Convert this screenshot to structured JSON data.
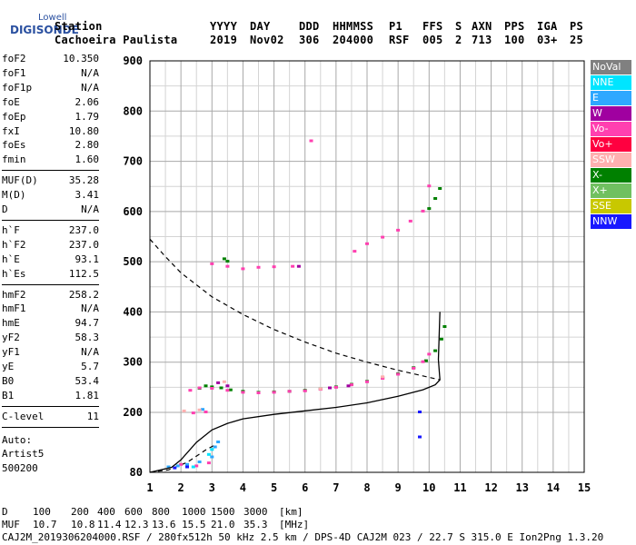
{
  "logo": {
    "line1": "Lowell",
    "line2": "DIGISONDE"
  },
  "header": {
    "row1": [
      "Station",
      "YYYY",
      "DAY",
      "DDD",
      "HHMMSS",
      "P1",
      "FFS",
      "S",
      "AXN",
      "PPS",
      "IGA",
      "PS"
    ],
    "row2": [
      "Cachoeira Paulista",
      "2019",
      "Nov02",
      "306",
      "204000",
      "RSF",
      "005",
      "2",
      "713",
      "100",
      "03+",
      "25"
    ]
  },
  "params": {
    "group1": [
      {
        "k": "foF2",
        "v": "10.350"
      },
      {
        "k": "foF1",
        "v": "N/A"
      },
      {
        "k": "foF1p",
        "v": "N/A"
      },
      {
        "k": "foE",
        "v": "2.06"
      },
      {
        "k": "foEp",
        "v": "1.79"
      },
      {
        "k": "fxI",
        "v": "10.80"
      },
      {
        "k": "foEs",
        "v": "2.80"
      },
      {
        "k": "fmin",
        "v": "1.60"
      }
    ],
    "group2": [
      {
        "k": "MUF(D)",
        "v": "35.28"
      },
      {
        "k": "M(D)",
        "v": "3.41"
      },
      {
        "k": "D",
        "v": "N/A"
      }
    ],
    "group3": [
      {
        "k": "h`F",
        "v": "237.0"
      },
      {
        "k": "h`F2",
        "v": "237.0"
      },
      {
        "k": "h`E",
        "v": "93.1"
      },
      {
        "k": "h`Es",
        "v": "112.5"
      }
    ],
    "group4": [
      {
        "k": "hmF2",
        "v": "258.2"
      },
      {
        "k": "hmF1",
        "v": "N/A"
      },
      {
        "k": "hmE",
        "v": "94.7"
      },
      {
        "k": "yF2",
        "v": "58.3"
      },
      {
        "k": "yF1",
        "v": "N/A"
      },
      {
        "k": "yE",
        "v": "5.7"
      },
      {
        "k": "B0",
        "v": "53.4"
      },
      {
        "k": "B1",
        "v": "1.81"
      }
    ],
    "group5": [
      {
        "k": "C-level",
        "v": "11"
      }
    ],
    "auto": [
      "Auto:",
      "Artist5",
      "500200"
    ]
  },
  "legend": [
    {
      "label": "NoVal",
      "color": "#808080"
    },
    {
      "label": "NNE",
      "color": "#00e5ff"
    },
    {
      "label": "E",
      "color": "#2ea8ff"
    },
    {
      "label": "W",
      "color": "#a000a0"
    },
    {
      "label": "Vo-",
      "color": "#ff40b0"
    },
    {
      "label": "Vo+",
      "color": "#ff0040"
    },
    {
      "label": "SSW",
      "color": "#ffb0b0"
    },
    {
      "label": "X-",
      "color": "#008000"
    },
    {
      "label": "X+",
      "color": "#70c060"
    },
    {
      "label": "SSE",
      "color": "#c8c800"
    },
    {
      "label": "NNW",
      "color": "#1818ff"
    }
  ],
  "chart_data": {
    "type": "scatter",
    "xlim": [
      1,
      15
    ],
    "ylim": [
      80,
      900
    ],
    "xticks": [
      "1",
      "2",
      "3",
      "4",
      "5",
      "6",
      "7",
      "8",
      "9",
      "10",
      "11",
      "12",
      "13",
      "14",
      "15"
    ],
    "yticks": [
      "80",
      "200",
      "300",
      "400",
      "500",
      "600",
      "700",
      "800",
      "900"
    ],
    "grid": true,
    "series": [
      {
        "name": "X-",
        "color": "#008000",
        "points": [
          [
            2.6,
            247
          ],
          [
            2.8,
            252
          ],
          [
            3.0,
            250
          ],
          [
            3.3,
            248
          ],
          [
            3.6,
            244
          ],
          [
            4.0,
            241
          ],
          [
            4.5,
            239
          ],
          [
            5.0,
            240
          ],
          [
            5.5,
            241
          ],
          [
            6.0,
            243
          ],
          [
            6.5,
            246
          ],
          [
            7.0,
            250
          ],
          [
            7.5,
            255
          ],
          [
            8.0,
            261
          ],
          [
            8.5,
            268
          ],
          [
            9.0,
            276
          ],
          [
            9.5,
            288
          ],
          [
            9.9,
            302
          ],
          [
            10.2,
            322
          ],
          [
            10.4,
            345
          ],
          [
            10.5,
            370
          ],
          [
            3.4,
            505
          ],
          [
            3.5,
            500
          ],
          [
            10.0,
            605
          ],
          [
            10.2,
            625
          ],
          [
            10.35,
            645
          ]
        ]
      },
      {
        "name": "Vo-",
        "color": "#ff40b0",
        "points": [
          [
            2.3,
            243
          ],
          [
            2.6,
            248
          ],
          [
            3.0,
            247
          ],
          [
            3.5,
            243
          ],
          [
            4.0,
            239
          ],
          [
            4.5,
            238
          ],
          [
            5.0,
            239
          ],
          [
            5.5,
            241
          ],
          [
            6.0,
            242
          ],
          [
            6.5,
            245
          ],
          [
            7.0,
            249
          ],
          [
            7.5,
            254
          ],
          [
            8.0,
            260
          ],
          [
            8.5,
            267
          ],
          [
            9.0,
            275
          ],
          [
            9.5,
            287
          ],
          [
            9.8,
            300
          ],
          [
            10.0,
            315
          ],
          [
            2.8,
            200
          ],
          [
            2.4,
            198
          ],
          [
            2.0,
            95
          ],
          [
            2.5,
            92
          ],
          [
            2.9,
            98
          ],
          [
            7.6,
            520
          ],
          [
            8.0,
            535
          ],
          [
            8.5,
            548
          ],
          [
            9.0,
            562
          ],
          [
            9.4,
            580
          ],
          [
            9.8,
            600
          ],
          [
            3.0,
            495
          ],
          [
            3.5,
            490
          ],
          [
            4.0,
            485
          ],
          [
            4.5,
            488
          ],
          [
            5.0,
            489
          ],
          [
            5.6,
            490
          ],
          [
            6.2,
            740
          ],
          [
            10.0,
            650
          ]
        ]
      },
      {
        "name": "W",
        "color": "#a000a0",
        "points": [
          [
            3.2,
            258
          ],
          [
            3.5,
            252
          ],
          [
            6.8,
            248
          ],
          [
            7.4,
            252
          ],
          [
            5.8,
            490
          ]
        ]
      },
      {
        "name": "E",
        "color": "#2ea8ff",
        "points": [
          [
            1.6,
            90
          ],
          [
            1.9,
            92
          ],
          [
            2.2,
            95
          ],
          [
            2.6,
            100
          ],
          [
            3.0,
            110
          ],
          [
            3.1,
            130
          ],
          [
            3.2,
            140
          ],
          [
            2.7,
            205
          ]
        ]
      },
      {
        "name": "NNE",
        "color": "#00e5ff",
        "points": [
          [
            2.4,
            90
          ],
          [
            2.9,
            115
          ],
          [
            3.0,
            125
          ]
        ]
      },
      {
        "name": "NNW",
        "color": "#1818ff",
        "points": [
          [
            1.8,
            88
          ],
          [
            2.2,
            90
          ],
          [
            9.7,
            150
          ],
          [
            9.7,
            200
          ]
        ]
      },
      {
        "name": "SSW",
        "color": "#ffb0b0",
        "points": [
          [
            2.1,
            202
          ],
          [
            2.6,
            204
          ],
          [
            3.4,
            260
          ],
          [
            6.5,
            246
          ],
          [
            8.5,
            270
          ]
        ]
      }
    ],
    "profile_curve": [
      [
        1,
        80
      ],
      [
        1.7,
        90
      ],
      [
        2.0,
        105
      ],
      [
        2.5,
        140
      ],
      [
        3.0,
        165
      ],
      [
        3.5,
        178
      ],
      [
        4.0,
        187
      ],
      [
        5.0,
        196
      ],
      [
        6.0,
        203
      ],
      [
        7.0,
        210
      ],
      [
        8.0,
        219
      ],
      [
        9.0,
        232
      ],
      [
        9.8,
        245
      ],
      [
        10.2,
        255
      ],
      [
        10.35,
        265
      ],
      [
        10.3,
        305
      ],
      [
        10.35,
        400
      ]
    ],
    "muf_curve": [
      [
        1,
        545
      ],
      [
        1.5,
        510
      ],
      [
        2.0,
        478
      ],
      [
        3.0,
        430
      ],
      [
        4.0,
        395
      ],
      [
        5.0,
        365
      ],
      [
        6.0,
        340
      ],
      [
        7.0,
        318
      ],
      [
        8.0,
        300
      ],
      [
        9.0,
        284
      ],
      [
        9.7,
        274
      ],
      [
        10.35,
        265
      ]
    ],
    "muf_low_curve": [
      [
        1.0,
        80
      ],
      [
        1.6,
        85
      ],
      [
        2.2,
        100
      ],
      [
        2.8,
        125
      ],
      [
        3.1,
        135
      ]
    ]
  },
  "footer": {
    "row_d_label": "D",
    "row_d": [
      "100",
      "200",
      "400",
      "600",
      "800",
      "1000",
      "1500",
      "3000",
      "[km]"
    ],
    "row_muf_label": "MUF",
    "row_muf": [
      "10.7",
      "10.8",
      "11.4",
      "12.3",
      "13.6",
      "15.5",
      "21.0",
      "35.3",
      "[MHz]"
    ],
    "file_line": "CAJ2M_2019306204000.RSF / 280fx512h 50 kHz 2.5 km / DPS-4D CAJ2M 023 / 22.7 S 315.0 E Ion2Png 1.3.20"
  }
}
